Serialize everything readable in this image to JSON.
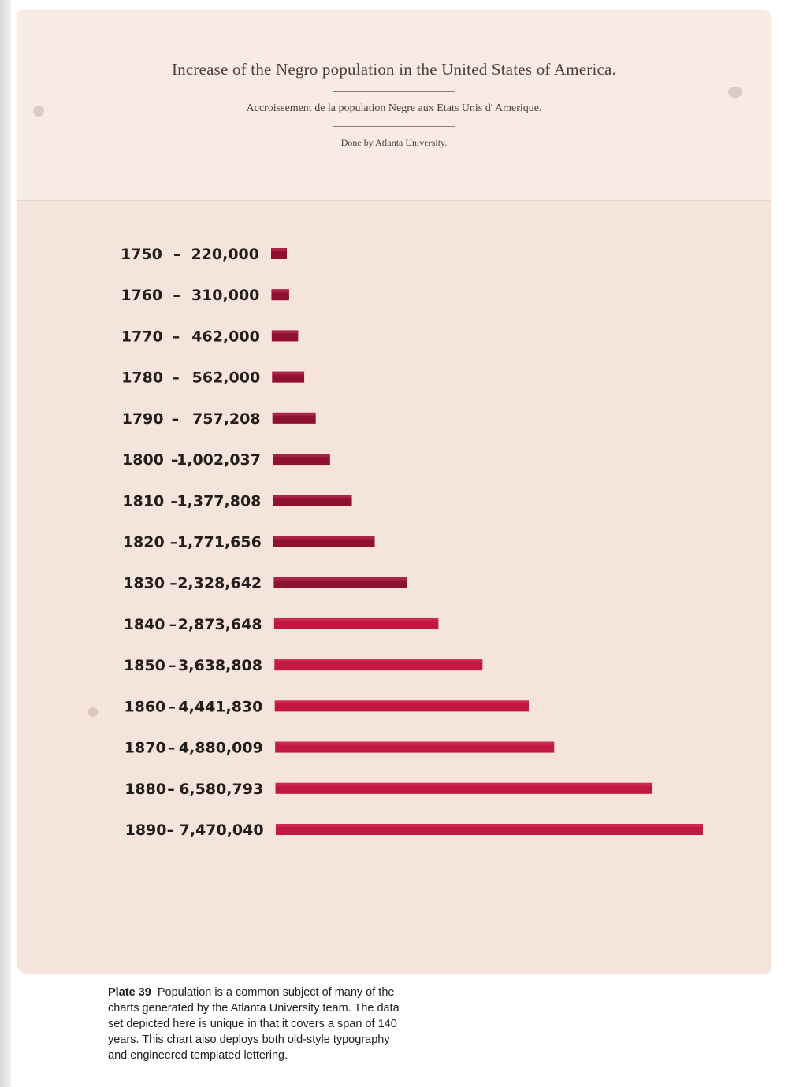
{
  "colors": {
    "paper": "#f4e4dc",
    "bar": "#c2173f",
    "bar_dark": "#8e1230",
    "ink": "#231d1c"
  },
  "chart_data": {
    "type": "bar",
    "orientation": "horizontal",
    "title": "Increase of the Negro population in the United States of America.",
    "subtitle": "Accroissement de la population Negre aux Etats Unis d' Amerique.",
    "credit": "Done by Atlanta University.",
    "categories": [
      "1750",
      "1760",
      "1770",
      "1780",
      "1790",
      "1800",
      "1810",
      "1820",
      "1830",
      "1840",
      "1850",
      "1860",
      "1870",
      "1880",
      "1890"
    ],
    "values": [
      220000,
      310000,
      462000,
      562000,
      757208,
      1002037,
      1377808,
      1771656,
      2328642,
      2873648,
      3638808,
      4441830,
      4880009,
      6580793,
      7470040
    ],
    "value_labels": [
      "220,000",
      "310,000",
      "462,000",
      "562,000",
      "757,208",
      "1,002,037",
      "1,377,808",
      "1,771,656",
      "2,328,642",
      "2,873,648",
      "3,638,808",
      "4,441,830",
      "4,880,009",
      "6,580,793",
      "7,470,040"
    ],
    "separator": "–",
    "grid": false,
    "legend": "none"
  },
  "caption": {
    "plate": "Plate 39",
    "text": "Population is a common subject of many of the charts generated by the Atlanta University team. The data set depicted here is unique in that it covers a span of 140 years. This chart also deploys both old-style typography and engineered templated lettering."
  }
}
